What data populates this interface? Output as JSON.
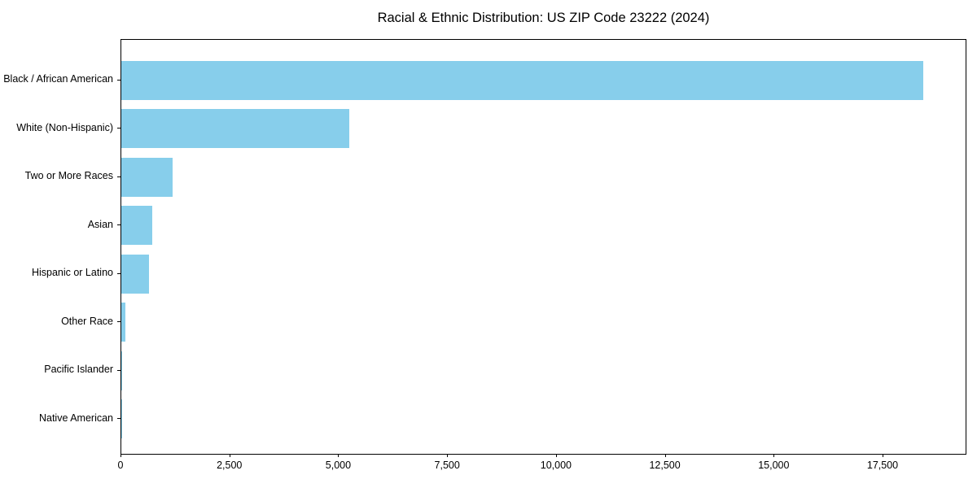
{
  "chart_data": {
    "type": "bar",
    "orientation": "horizontal",
    "title": "Racial & Ethnic Distribution: US ZIP Code 23222 (2024)",
    "categories": [
      "Black / African American",
      "White (Non-Hispanic)",
      "Two or More Races",
      "Asian",
      "Hispanic or Latino",
      "Other Race",
      "Pacific Islander",
      "Native American"
    ],
    "values": [
      18450,
      5250,
      1180,
      710,
      645,
      85,
      20,
      5
    ],
    "xlabel": "",
    "ylabel": "",
    "xlim": [
      0,
      19425
    ],
    "xticks": [
      0,
      2500,
      5000,
      7500,
      10000,
      12500,
      15000,
      17500
    ],
    "xtick_labels": [
      "0",
      "2,500",
      "5,000",
      "7,500",
      "10,000",
      "12,500",
      "15,000",
      "17,500"
    ],
    "bar_color": "#87CEEB",
    "spine_color": "#000000",
    "text_color": "#000000",
    "background_color": "#ffffff",
    "grid": false,
    "legend": null
  }
}
